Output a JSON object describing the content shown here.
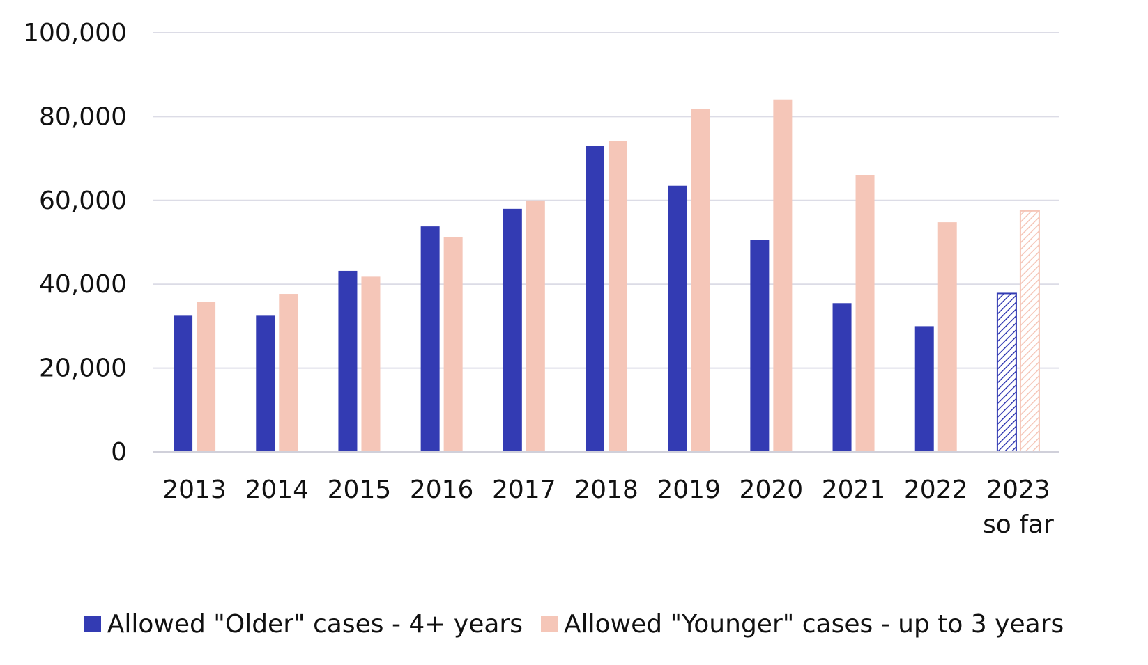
{
  "chart_data": {
    "type": "bar",
    "title": "",
    "xlabel": "",
    "ylabel": "",
    "ylim": [
      0,
      100000
    ],
    "yticks": [
      0,
      20000,
      40000,
      60000,
      80000,
      100000
    ],
    "ytick_labels": [
      "0",
      "20,000",
      "40,000",
      "60,000",
      "80,000",
      "100,000"
    ],
    "grid": "horizontal",
    "legend_position": "bottom",
    "categories": [
      "2013",
      "2014",
      "2015",
      "2016",
      "2017",
      "2018",
      "2019",
      "2020",
      "2021",
      "2022",
      "2023\nso far"
    ],
    "series": [
      {
        "name": "Allowed \"Older\" cases - 4+ years",
        "color": "#333BB3",
        "values": [
          32500,
          32500,
          43200,
          53800,
          58000,
          73000,
          63500,
          50500,
          35500,
          30000,
          37800
        ]
      },
      {
        "name": "Allowed \"Younger\" cases - up to 3 years",
        "color": "#F5C6B8",
        "values": [
          35800,
          37700,
          41800,
          51300,
          60000,
          74200,
          81800,
          84100,
          66100,
          54800,
          57500
        ]
      }
    ],
    "partial_category": "2023\nso far",
    "partial_fill": "hatched"
  }
}
